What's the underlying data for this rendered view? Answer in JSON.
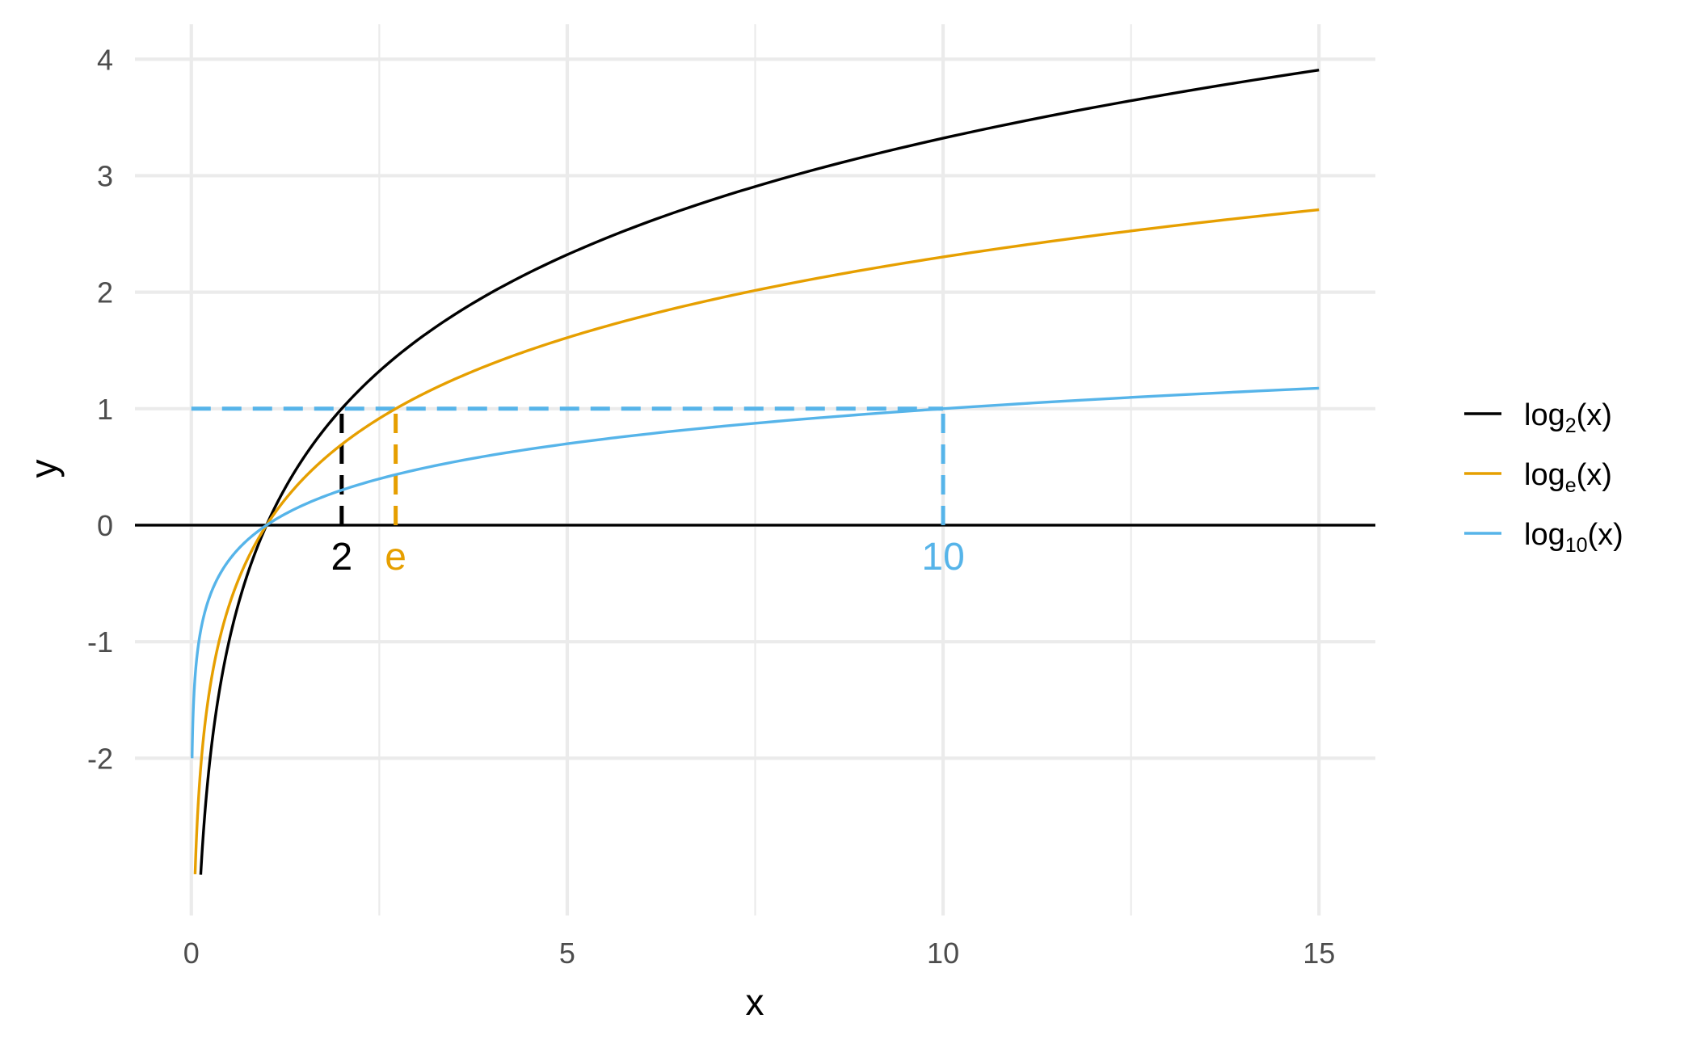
{
  "chart_data": {
    "type": "line",
    "xlabel": "x",
    "ylabel": "y",
    "xlim": [
      -0.75,
      15.75
    ],
    "ylim": [
      -3.35,
      4.3
    ],
    "x_ticks": [
      0,
      5,
      10,
      15
    ],
    "x_tick_labels": [
      "0",
      "5",
      "10",
      "15"
    ],
    "y_ticks": [
      -2,
      -1,
      0,
      1,
      2,
      3,
      4
    ],
    "y_tick_labels": [
      "-2",
      "-1",
      "0",
      "1",
      "2",
      "3",
      "4"
    ],
    "grid": true,
    "legend_position": "right",
    "series": [
      {
        "name": "log2(x)",
        "label_main": "log",
        "label_sub": "2",
        "label_tail": "(x)",
        "base": 2,
        "color": "#000000",
        "x": [
          0.125,
          0.25,
          0.5,
          1,
          1.5,
          2,
          3,
          4,
          5,
          6,
          8,
          10,
          12,
          15
        ],
        "y": [
          -3,
          -2,
          -1,
          0,
          0.585,
          1,
          1.585,
          2,
          2.322,
          2.585,
          3,
          3.322,
          3.585,
          3.907
        ]
      },
      {
        "name": "loge(x)",
        "label_main": "log",
        "label_sub": "e",
        "label_tail": "(x)",
        "base": 2.718281828,
        "color": "#E69F00",
        "x": [
          0.05,
          0.1,
          0.25,
          0.5,
          1,
          1.5,
          2,
          2.718,
          4,
          5,
          7,
          10,
          12,
          15
        ],
        "y": [
          -3,
          -2.303,
          -1.386,
          -0.693,
          0,
          0.405,
          0.693,
          1,
          1.386,
          1.609,
          1.946,
          2.303,
          2.485,
          2.708
        ]
      },
      {
        "name": "log10(x)",
        "label_main": "log",
        "label_sub": "10",
        "label_tail": "(x)",
        "base": 10,
        "color": "#56B4E9",
        "x": [
          0.01,
          0.05,
          0.1,
          0.25,
          0.5,
          1,
          2,
          3,
          5,
          8,
          10,
          12,
          15
        ],
        "y": [
          -2,
          -1.301,
          -1,
          -0.602,
          -0.301,
          0,
          0.301,
          0.477,
          0.699,
          0.903,
          1,
          1.079,
          1.176
        ]
      }
    ],
    "reference_lines": {
      "horizontal_dashed": {
        "y": 1,
        "x_from": 0,
        "x_to": 10,
        "color": "#56B4E9"
      },
      "zero_line": {
        "y": 0,
        "color": "#000000"
      },
      "vertical_dashed": [
        {
          "x": 2,
          "y_from": 0,
          "y_to": 1,
          "color": "#000000"
        },
        {
          "x": 2.718,
          "y_from": 0,
          "y_to": 1,
          "color": "#E69F00"
        },
        {
          "x": 10,
          "y_from": 0,
          "y_to": 1,
          "color": "#56B4E9"
        }
      ]
    },
    "annotations": [
      {
        "text": "2",
        "x": 2,
        "color": "#000000"
      },
      {
        "text": "e",
        "x": 2.718,
        "color": "#E69F00"
      },
      {
        "text": "10",
        "x": 10,
        "color": "#56B4E9"
      }
    ]
  }
}
